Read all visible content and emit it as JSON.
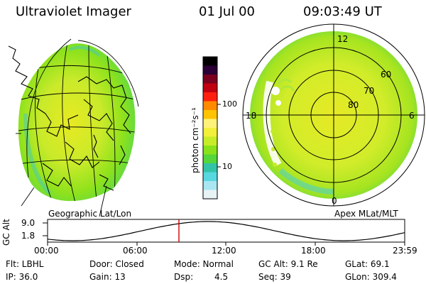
{
  "header": {
    "title": "Ultraviolet Imager",
    "date": "01 Jul 00",
    "time": "09:03:49 UT"
  },
  "colorbar": {
    "unit_label": "photon cm⁻²s⁻¹",
    "tick_100": "100",
    "tick_10": "10",
    "colors": [
      "#000000",
      "#2b0036",
      "#7a0020",
      "#c00010",
      "#ff1f0f",
      "#ff8a00",
      "#ffc400",
      "#fff27a",
      "#f2f03a",
      "#c7ec28",
      "#89e21a",
      "#55d63a",
      "#33c4a8",
      "#57d8e0",
      "#a8e6f2",
      "#e8f3f6"
    ]
  },
  "left_map": {
    "label": "Geographic Lat/Lon"
  },
  "right_map": {
    "label": "Apex MLat/MLT",
    "mlt_labels": {
      "top": "12",
      "left": "18",
      "right": "6",
      "bottom": "0"
    },
    "lat_labels": [
      "60",
      "70",
      "80"
    ]
  },
  "timeline": {
    "axis_label": "GC Alt",
    "tick_high": "9.0",
    "tick_low": "1.8",
    "time_labels": [
      "00:00",
      "06:00",
      "12:00",
      "18:00",
      "23:59"
    ],
    "marker_color": "#d00000"
  },
  "info": {
    "flt": "Flt: LBHL",
    "ip": "IP: 36.0",
    "door": "Door: Closed",
    "gain": "Gain: 13",
    "mode": "Mode: Normal",
    "dsp_label": "Dsp:",
    "dsp_value": "4.5",
    "gc_alt": "GC Alt: 9.1 Re",
    "seq": "Seq: 39",
    "glat": "GLat:  69.1",
    "glon": "GLon: 309.4"
  }
}
